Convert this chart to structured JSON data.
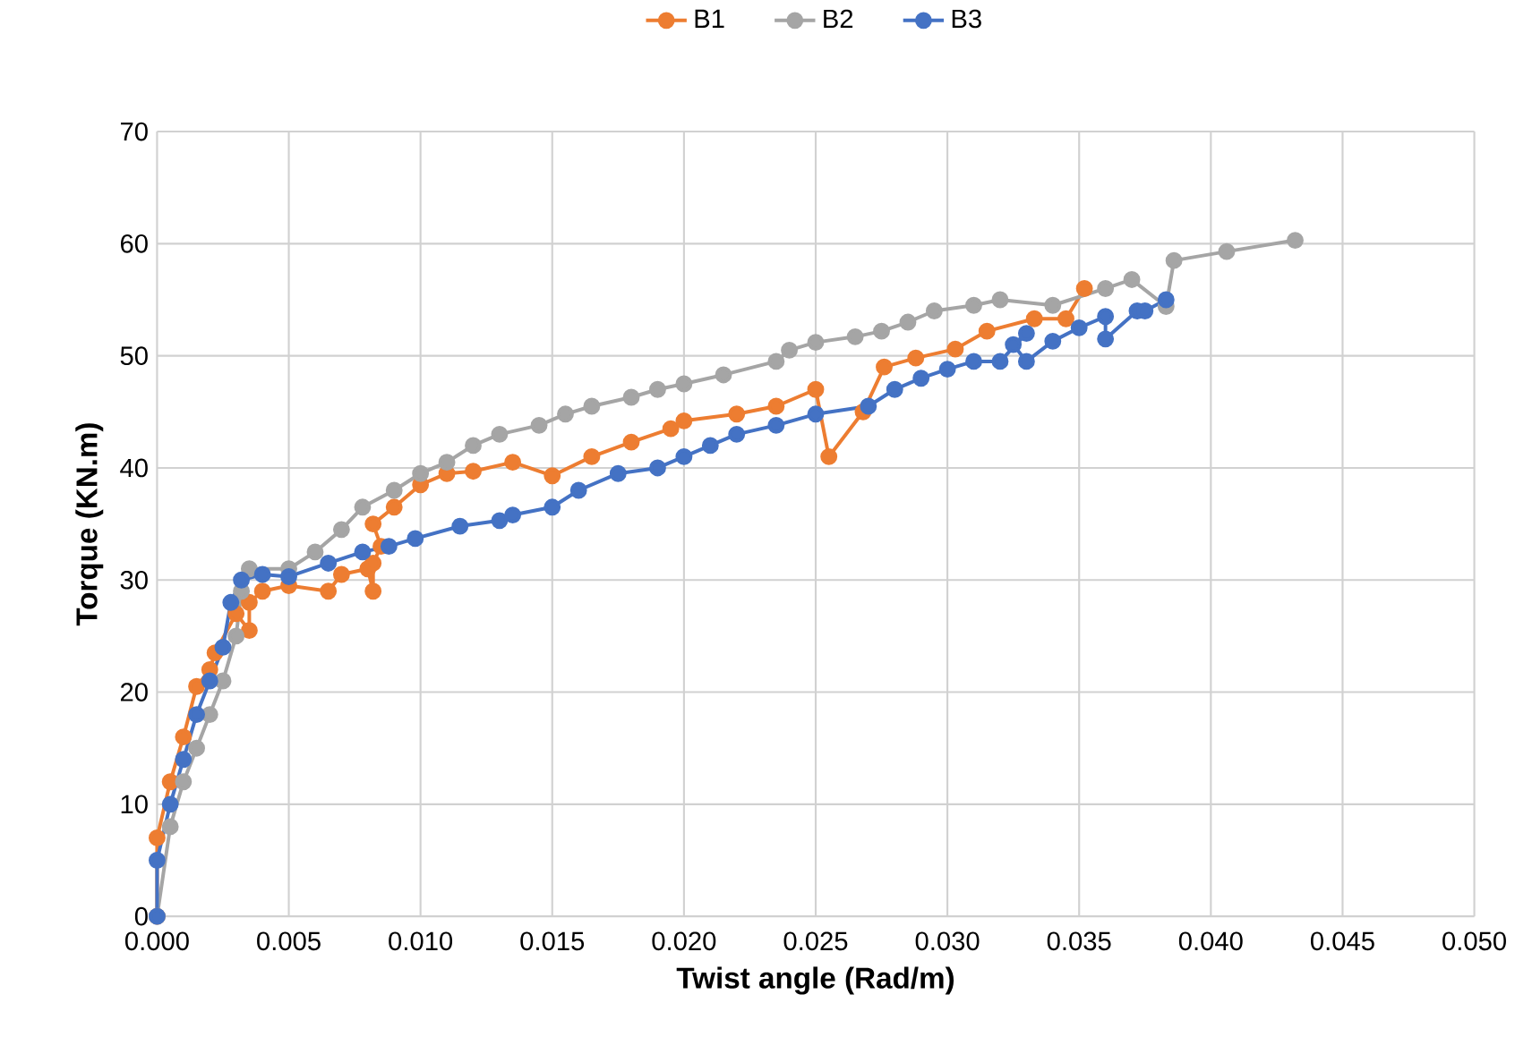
{
  "chart_data": {
    "type": "line",
    "xlabel": "Twist angle (Rad/m)",
    "ylabel": "Torque (KN.m)",
    "xlim": [
      0,
      0.05
    ],
    "ylim": [
      0,
      70
    ],
    "xticks": [
      {
        "value": 0,
        "label": "0.000"
      },
      {
        "value": 0.005,
        "label": "0.005"
      },
      {
        "value": 0.01,
        "label": "0.010"
      },
      {
        "value": 0.015,
        "label": "0.015"
      },
      {
        "value": 0.02,
        "label": "0.020"
      },
      {
        "value": 0.025,
        "label": "0.025"
      },
      {
        "value": 0.03,
        "label": "0.030"
      },
      {
        "value": 0.035,
        "label": "0.035"
      },
      {
        "value": 0.04,
        "label": "0.040"
      },
      {
        "value": 0.045,
        "label": "0.045"
      },
      {
        "value": 0.05,
        "label": "0.050"
      }
    ],
    "yticks": [
      0,
      10,
      20,
      30,
      40,
      50,
      60,
      70
    ],
    "grid": true,
    "legend": "top",
    "marker": "circle",
    "line_style": "solid",
    "series": [
      {
        "name": "B1",
        "color": "#ed7d31",
        "x": [
          0,
          0,
          0.0005,
          0.001,
          0.0015,
          0.002,
          0.0022,
          0.003,
          0.0035,
          0.0035,
          0.004,
          0.005,
          0.0065,
          0.007,
          0.008,
          0.0082,
          0.0082,
          0.0085,
          0.0082,
          0.009,
          0.01,
          0.011,
          0.012,
          0.0135,
          0.015,
          0.0165,
          0.018,
          0.0195,
          0.02,
          0.022,
          0.0235,
          0.025,
          0.0255,
          0.0268,
          0.0276,
          0.0288,
          0.0303,
          0.0315,
          0.0333,
          0.0345,
          0.0352
        ],
        "values": [
          0,
          7,
          12,
          16,
          20.5,
          22,
          23.5,
          27,
          25.5,
          28,
          29,
          29.5,
          29,
          30.5,
          31,
          29,
          31.5,
          33,
          35,
          36.5,
          38.5,
          39.5,
          39.7,
          40.5,
          39.3,
          41,
          42.3,
          43.5,
          44.2,
          44.8,
          45.5,
          47,
          41,
          45,
          49,
          49.8,
          50.6,
          52.2,
          53.3,
          53.3,
          56
        ]
      },
      {
        "name": "B2",
        "color": "#a5a5a5",
        "x": [
          0,
          0.0005,
          0.001,
          0.0015,
          0.002,
          0.0025,
          0.003,
          0.0032,
          0.0035,
          0.005,
          0.006,
          0.007,
          0.0078,
          0.009,
          0.01,
          0.011,
          0.012,
          0.013,
          0.0145,
          0.0155,
          0.0165,
          0.018,
          0.019,
          0.02,
          0.0215,
          0.0235,
          0.024,
          0.025,
          0.0265,
          0.0275,
          0.0285,
          0.0295,
          0.031,
          0.032,
          0.034,
          0.036,
          0.037,
          0.0383,
          0.0386,
          0.0406,
          0.0432
        ],
        "values": [
          0,
          8,
          12,
          15,
          18,
          21,
          25,
          29,
          31,
          31,
          32.5,
          34.5,
          36.5,
          38,
          39.5,
          40.5,
          42,
          43,
          43.8,
          44.8,
          45.5,
          46.3,
          47,
          47.5,
          48.3,
          49.5,
          50.5,
          51.2,
          51.7,
          52.2,
          53,
          54,
          54.5,
          55,
          54.5,
          56,
          56.8,
          54.4,
          58.5,
          59.3,
          60.3
        ]
      },
      {
        "name": "B3",
        "color": "#4472c4",
        "x": [
          0,
          0,
          0.0005,
          0.001,
          0.0015,
          0.002,
          0.0025,
          0.0028,
          0.0032,
          0.004,
          0.005,
          0.0065,
          0.0078,
          0.0088,
          0.0098,
          0.0115,
          0.013,
          0.0135,
          0.015,
          0.016,
          0.0175,
          0.019,
          0.02,
          0.021,
          0.022,
          0.0235,
          0.025,
          0.027,
          0.028,
          0.029,
          0.03,
          0.031,
          0.032,
          0.033,
          0.0325,
          0.033,
          0.034,
          0.035,
          0.036,
          0.036,
          0.0372,
          0.0375,
          0.0383
        ],
        "values": [
          0,
          5,
          10,
          14,
          18,
          21,
          24,
          28,
          30,
          30.5,
          30.3,
          31.5,
          32.5,
          33,
          33.7,
          34.8,
          35.3,
          35.8,
          36.5,
          38,
          39.5,
          40,
          41,
          42,
          43,
          43.8,
          44.8,
          45.5,
          47,
          48,
          48.8,
          49.5,
          49.5,
          52,
          51,
          49.5,
          51.3,
          52.5,
          53.5,
          51.5,
          54,
          54,
          55
        ]
      }
    ]
  }
}
